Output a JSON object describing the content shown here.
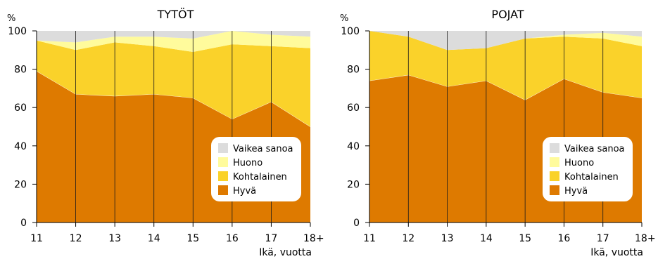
{
  "chart_data": [
    {
      "type": "area",
      "stacked": true,
      "title": "TYTÖT",
      "ylabel": "%",
      "xlabel": "Ikä, vuotta",
      "categories": [
        "11",
        "12",
        "13",
        "14",
        "15",
        "16",
        "17",
        "18+"
      ],
      "ylim": [
        0,
        100
      ],
      "yticks": [
        0,
        20,
        40,
        60,
        80,
        100
      ],
      "grid": "vertical",
      "legend_position": "bottom-right",
      "series": [
        {
          "name": "Hyvä",
          "color": "#DE7A00",
          "values": [
            79,
            67,
            66,
            67,
            65,
            54,
            63,
            50
          ]
        },
        {
          "name": "Kohtalainen",
          "color": "#FAD22A",
          "values": [
            16,
            23,
            28,
            25,
            24,
            39,
            29,
            41
          ]
        },
        {
          "name": "Huono",
          "color": "#FFFB9C",
          "values": [
            0,
            4,
            3,
            5,
            7,
            7,
            6,
            6
          ]
        },
        {
          "name": "Vaikea sanoa",
          "color": "#DCDCDC",
          "values": [
            5,
            6,
            3,
            3,
            4,
            0,
            2,
            3
          ]
        }
      ]
    },
    {
      "type": "area",
      "stacked": true,
      "title": "POJAT",
      "ylabel": "%",
      "xlabel": "Ikä, vuotta",
      "categories": [
        "11",
        "12",
        "13",
        "14",
        "15",
        "16",
        "17",
        "18+"
      ],
      "ylim": [
        0,
        100
      ],
      "yticks": [
        0,
        20,
        40,
        60,
        80,
        100
      ],
      "grid": "vertical",
      "legend_position": "bottom-right",
      "series": [
        {
          "name": "Hyvä",
          "color": "#DE7A00",
          "values": [
            74,
            77,
            71,
            74,
            64,
            75,
            68,
            65
          ]
        },
        {
          "name": "Kohtalainen",
          "color": "#FAD22A",
          "values": [
            26,
            20,
            19,
            17,
            32,
            22,
            28,
            27
          ]
        },
        {
          "name": "Huono",
          "color": "#FFFB9C",
          "values": [
            0,
            0,
            0,
            0,
            0,
            1,
            3,
            5
          ]
        },
        {
          "name": "Vaikea sanoa",
          "color": "#DCDCDC",
          "values": [
            0,
            3,
            10,
            9,
            4,
            2,
            1,
            3
          ]
        }
      ]
    }
  ]
}
